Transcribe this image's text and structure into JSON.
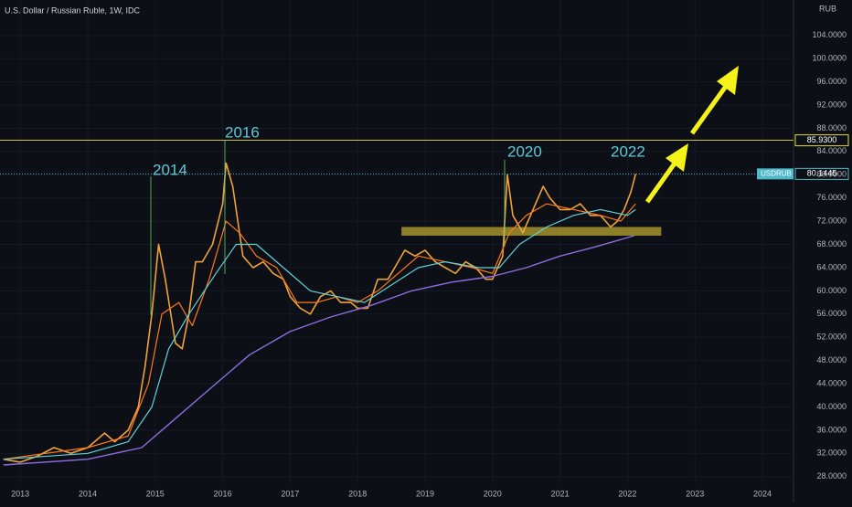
{
  "chart_data": {
    "type": "line",
    "title": "U.S. Dollar / Russian Ruble, 1W, IDC",
    "currency": "RUB",
    "annotations": [
      "2014",
      "2016",
      "2020",
      "2022"
    ],
    "xlim": [
      2012.7,
      2024.46
    ],
    "ylim": [
      26.7,
      110.1
    ],
    "xticks": [
      2013,
      2014,
      2015,
      2016,
      2017,
      2018,
      2019,
      2020,
      2021,
      2022,
      2023,
      2024
    ],
    "yticks": [
      {
        "value": 28,
        "label": "28.0000"
      },
      {
        "value": 32,
        "label": "32.0000"
      },
      {
        "value": 36,
        "label": "36.0000"
      },
      {
        "value": 40,
        "label": "40.0000"
      },
      {
        "value": 44,
        "label": "44.0000"
      },
      {
        "value": 48,
        "label": "48.0000"
      },
      {
        "value": 52,
        "label": "52.0000"
      },
      {
        "value": 56,
        "label": "56.0000"
      },
      {
        "value": 60,
        "label": "60.0000"
      },
      {
        "value": 64,
        "label": "64.0000"
      },
      {
        "value": 68,
        "label": "68.0000"
      },
      {
        "value": 72,
        "label": "72.0000"
      },
      {
        "value": 76,
        "label": "76.0000"
      },
      {
        "value": 80,
        "label": "80.0000"
      },
      {
        "value": 84,
        "label": "84.0000"
      },
      {
        "value": 88,
        "label": "88.0000"
      },
      {
        "value": 92,
        "label": "92.0000"
      },
      {
        "value": 96,
        "label": "96.0000"
      },
      {
        "value": 100,
        "label": "100.0000"
      },
      {
        "value": 104,
        "label": "104.0000"
      }
    ],
    "levels": [
      {
        "value": 85.93,
        "label": "85.9300",
        "color": "#e6d93a"
      },
      {
        "name": "USDRUB",
        "value": 80.1445,
        "label": "80.1445",
        "color": "#4fb8c9"
      }
    ],
    "zone": {
      "y": [
        69.5,
        71
      ],
      "x": [
        2018.65,
        2022.5
      ],
      "color": "#b8a632"
    },
    "series": [
      {
        "color": "#f0a23a",
        "width": 1.6,
        "x": [
          2012.75,
          2013.0,
          2013.25,
          2013.5,
          2013.75,
          2014.0,
          2014.25,
          2014.4,
          2014.6,
          2014.75,
          2014.85,
          2014.95,
          2015.05,
          2015.15,
          2015.3,
          2015.4,
          2015.5,
          2015.6,
          2015.7,
          2015.85,
          2016.0,
          2016.05,
          2016.15,
          2016.3,
          2016.45,
          2016.6,
          2016.75,
          2016.9,
          2017.0,
          2017.15,
          2017.3,
          2017.45,
          2017.6,
          2017.75,
          2017.9,
          2018.0,
          2018.15,
          2018.3,
          2018.45,
          2018.6,
          2018.7,
          2018.85,
          2019.0,
          2019.15,
          2019.3,
          2019.45,
          2019.6,
          2019.75,
          2019.9,
          2020.0,
          2020.15,
          2020.22,
          2020.3,
          2020.45,
          2020.6,
          2020.75,
          2020.85,
          2021.0,
          2021.15,
          2021.3,
          2021.45,
          2021.6,
          2021.75,
          2021.85,
          2021.95,
          2022.05,
          2022.12
        ],
        "values": [
          31,
          30.5,
          31.5,
          33,
          32,
          33,
          35.5,
          34,
          36,
          40,
          47,
          56,
          68,
          62,
          51,
          50,
          56,
          65,
          65,
          68,
          75,
          82,
          78,
          66,
          64,
          65,
          63,
          62,
          59,
          57,
          56,
          59,
          60,
          58,
          58,
          57,
          57,
          62,
          62,
          65,
          67,
          66,
          67,
          65,
          64,
          63,
          65,
          64,
          62,
          62,
          66,
          80,
          73,
          70,
          74,
          78,
          76,
          74,
          74,
          75,
          73,
          73,
          71,
          72,
          74,
          77,
          80.1445
        ]
      },
      {
        "color": "#ff7a1a",
        "width": 1.2,
        "x": [
          2012.75,
          2014.0,
          2014.6,
          2014.9,
          2015.1,
          2015.35,
          2015.55,
          2015.8,
          2016.05,
          2016.25,
          2016.5,
          2016.8,
          2017.1,
          2017.4,
          2017.7,
          2018.0,
          2018.3,
          2018.6,
          2018.9,
          2019.3,
          2019.7,
          2020.0,
          2020.25,
          2020.5,
          2020.8,
          2021.2,
          2021.6,
          2021.9,
          2022.12
        ],
        "values": [
          31,
          33,
          35,
          44,
          56,
          58,
          54,
          62,
          72,
          70,
          66,
          64,
          58,
          58,
          59,
          58,
          60,
          63,
          66,
          65,
          64,
          63,
          70,
          73,
          75,
          74,
          73,
          72,
          75
        ]
      },
      {
        "color": "#5fd3d8",
        "width": 1.2,
        "x": [
          2012.75,
          2014.0,
          2014.6,
          2014.95,
          2015.2,
          2015.5,
          2015.9,
          2016.2,
          2016.5,
          2016.9,
          2017.3,
          2017.7,
          2018.1,
          2018.5,
          2018.9,
          2019.3,
          2019.8,
          2020.1,
          2020.4,
          2020.8,
          2021.2,
          2021.6,
          2022.0,
          2022.12
        ],
        "values": [
          31,
          32,
          34,
          40,
          50,
          56,
          63,
          68,
          68,
          64,
          60,
          59,
          58,
          61,
          64,
          65,
          64,
          64,
          68,
          71,
          73,
          74,
          73,
          74
        ]
      },
      {
        "color": "#8d6ee0",
        "width": 1.4,
        "x": [
          2012.75,
          2014.0,
          2014.8,
          2015.3,
          2015.8,
          2016.4,
          2017.0,
          2017.6,
          2018.2,
          2018.8,
          2019.4,
          2020.0,
          2020.5,
          2021.0,
          2021.5,
          2022.1
        ],
        "values": [
          30,
          31,
          33,
          38,
          43,
          49,
          53,
          55.5,
          57.5,
          60,
          61.5,
          62.5,
          64,
          66,
          67.5,
          69.5
        ]
      }
    ]
  }
}
